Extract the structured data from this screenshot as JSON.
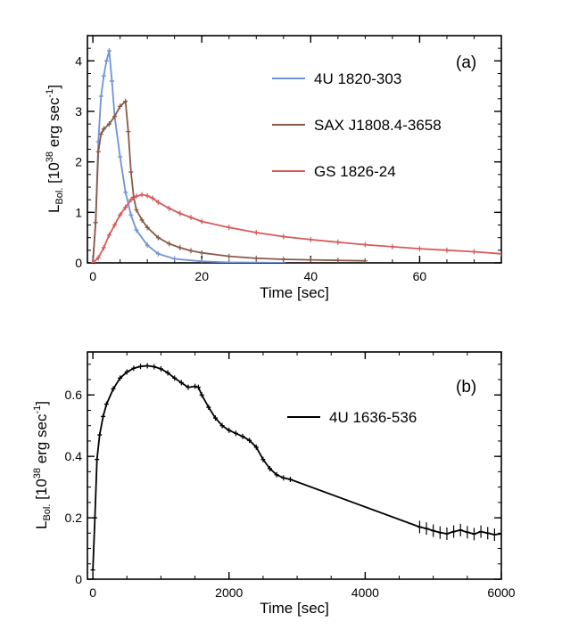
{
  "chart_data": [
    {
      "type": "line",
      "panel_label": "(a)",
      "xlabel": "Time [sec]",
      "ylabel": {
        "base": "L",
        "sub": "Bol.",
        "pre": " [10",
        "sup1": "38",
        "mid": " erg sec",
        "sup2": "-1",
        "post": "]"
      },
      "xlim": [
        -1,
        75
      ],
      "ylim": [
        0,
        4.5
      ],
      "x_ticks": [
        0,
        20,
        40,
        60
      ],
      "x_tick_labels": [
        "0",
        "20",
        "40",
        "60"
      ],
      "y_ticks": [
        0,
        1,
        2,
        3,
        4
      ],
      "y_tick_labels": [
        "0",
        "1",
        "2",
        "3",
        "4"
      ],
      "grid": false,
      "legend_position": "top-right",
      "series": [
        {
          "name": "4U 1820-303",
          "color": "#6f93d6",
          "x": [
            0,
            0.5,
            1,
            1.5,
            2,
            2.5,
            3,
            3.5,
            4,
            5,
            6,
            7,
            8,
            10,
            12,
            15,
            20,
            25,
            30,
            35
          ],
          "y": [
            0,
            0.8,
            2.4,
            3.3,
            3.7,
            4.0,
            4.2,
            3.6,
            2.9,
            2.1,
            1.4,
            0.95,
            0.65,
            0.35,
            0.18,
            0.08,
            0.03,
            0.01,
            0.005,
            0
          ]
        },
        {
          "name": "SAX J1808.4-3658",
          "color": "#8a5a48",
          "x": [
            0,
            0.5,
            1,
            1.5,
            2,
            3,
            4,
            5,
            6,
            6.5,
            7,
            7.5,
            8,
            9,
            10,
            12,
            14,
            16,
            18,
            20,
            25,
            30,
            35,
            40,
            45,
            50
          ],
          "y": [
            0,
            0.8,
            2.2,
            2.55,
            2.65,
            2.75,
            2.9,
            3.1,
            3.2,
            2.6,
            1.8,
            1.3,
            1.05,
            0.85,
            0.7,
            0.5,
            0.38,
            0.3,
            0.24,
            0.2,
            0.13,
            0.09,
            0.07,
            0.06,
            0.05,
            0.04
          ]
        },
        {
          "name": "GS 1826-24",
          "color": "#d65a5a",
          "x": [
            0,
            1,
            2,
            3,
            4,
            5,
            6,
            7,
            8,
            9,
            10,
            11,
            12,
            14,
            16,
            18,
            20,
            25,
            30,
            35,
            40,
            45,
            50,
            55,
            60,
            65,
            70,
            75
          ],
          "y": [
            0,
            0.1,
            0.3,
            0.55,
            0.75,
            0.95,
            1.1,
            1.25,
            1.32,
            1.35,
            1.33,
            1.28,
            1.2,
            1.08,
            0.98,
            0.9,
            0.82,
            0.7,
            0.6,
            0.52,
            0.46,
            0.41,
            0.36,
            0.32,
            0.28,
            0.25,
            0.22,
            0.18
          ]
        }
      ]
    },
    {
      "type": "line",
      "panel_label": "(b)",
      "xlabel": "Time [sec]",
      "ylabel": {
        "base": "L",
        "sub": "Bol.",
        "pre": " [10",
        "sup1": "38",
        "mid": " erg sec",
        "sup2": "-1",
        "post": "]"
      },
      "xlim": [
        -80,
        6000
      ],
      "ylim": [
        0,
        0.74
      ],
      "x_ticks": [
        0,
        2000,
        4000,
        6000
      ],
      "x_tick_labels": [
        "0",
        "2000",
        "4000",
        "6000"
      ],
      "y_ticks": [
        0.2,
        0.4,
        0.6
      ],
      "y_tick_labels": [
        "0.2",
        "0.4",
        "0.6"
      ],
      "y_zero_label": "0",
      "grid": false,
      "legend_position": "center-right",
      "series": [
        {
          "name": "4U 1636-536",
          "color": "#000000",
          "x": [
            0,
            30,
            60,
            100,
            150,
            200,
            300,
            400,
            500,
            600,
            700,
            800,
            900,
            1000,
            1100,
            1200,
            1300,
            1400,
            1500,
            1550,
            1600,
            1700,
            1800,
            1900,
            2000,
            2100,
            2200,
            2300,
            2400,
            2500,
            2600,
            2700,
            2800,
            2900,
            4800,
            4900,
            5000,
            5100,
            5200,
            5300,
            5400,
            5500,
            5600,
            5700,
            5800,
            5900,
            6000
          ],
          "y": [
            0.03,
            0.2,
            0.39,
            0.47,
            0.53,
            0.57,
            0.62,
            0.655,
            0.675,
            0.687,
            0.693,
            0.695,
            0.692,
            0.685,
            0.672,
            0.655,
            0.64,
            0.625,
            0.628,
            0.625,
            0.6,
            0.56,
            0.525,
            0.5,
            0.485,
            0.475,
            0.465,
            0.452,
            0.43,
            0.39,
            0.36,
            0.34,
            0.33,
            0.325,
            0.17,
            0.165,
            0.158,
            0.152,
            0.148,
            0.155,
            0.16,
            0.153,
            0.147,
            0.155,
            0.15,
            0.145,
            0.148
          ]
        }
      ]
    }
  ]
}
